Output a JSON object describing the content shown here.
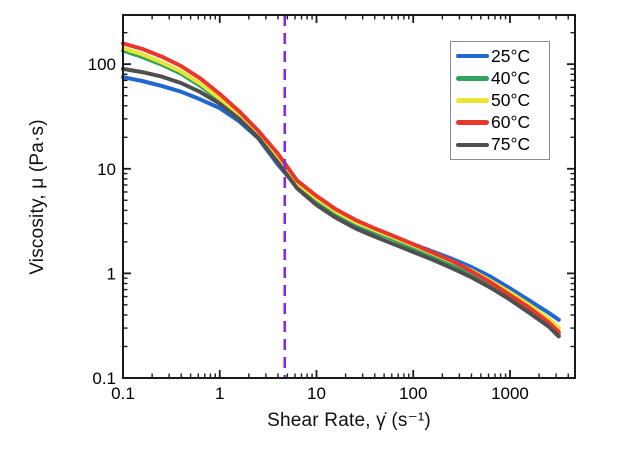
{
  "chart_data": {
    "type": "line",
    "title": "",
    "xlabel": "Shear Rate, γ̇ (s⁻¹)",
    "ylabel": "Viscosity, μ (Pa·s)",
    "x_scale": "log",
    "y_scale": "log",
    "xlim": [
      0.1,
      4700
    ],
    "ylim": [
      0.1,
      295
    ],
    "x_ticks": [
      0.1,
      1,
      10,
      100,
      1000
    ],
    "x_tick_labels": [
      "0.1",
      "1",
      "10",
      "100",
      "1000"
    ],
    "y_ticks": [
      0.1,
      1,
      10,
      100
    ],
    "y_tick_labels": [
      "0.1",
      "1",
      "10",
      "100"
    ],
    "grid": "off",
    "legend_position": "top-right",
    "x": [
      0.1,
      0.158,
      0.251,
      0.398,
      0.631,
      1,
      1.585,
      2.512,
      3.981,
      6.31,
      10,
      15.85,
      25.12,
      39.81,
      63.1,
      100,
      158.5,
      251.2,
      398.1,
      631,
      1000,
      1585,
      2512,
      3200
    ],
    "series": [
      {
        "name": "25°C",
        "color": "#2067d2",
        "values": [
          75,
          69,
          62,
          54.5,
          46,
          38,
          28.5,
          19.5,
          11.0,
          6.7,
          4.7,
          3.5,
          2.85,
          2.45,
          2.15,
          1.9,
          1.62,
          1.38,
          1.15,
          0.93,
          0.72,
          0.55,
          0.42,
          0.36
        ]
      },
      {
        "name": "40°C",
        "color": "#2fa35f",
        "values": [
          135,
          117,
          99,
          81,
          62,
          45,
          31,
          20.5,
          12.6,
          7.0,
          5.0,
          3.75,
          3.0,
          2.5,
          2.1,
          1.75,
          1.45,
          1.2,
          0.98,
          0.78,
          0.6,
          0.46,
          0.315,
          0.26
        ]
      },
      {
        "name": "50°C",
        "color": "#e9e436",
        "values": [
          142,
          124,
          104,
          85,
          65,
          47,
          32.5,
          21.5,
          13.2,
          7.3,
          5.2,
          3.9,
          3.1,
          2.6,
          2.2,
          1.85,
          1.55,
          1.3,
          1.07,
          0.85,
          0.66,
          0.5,
          0.37,
          0.3
        ]
      },
      {
        "name": "60°C",
        "color": "#e9372e",
        "values": [
          158,
          140,
          118,
          96,
          73,
          52,
          35.5,
          23,
          14,
          7.7,
          5.5,
          4.1,
          3.25,
          2.7,
          2.27,
          1.9,
          1.58,
          1.32,
          1.05,
          0.82,
          0.62,
          0.47,
          0.34,
          0.275
        ]
      },
      {
        "name": "75°C",
        "color": "#4f4f4f",
        "values": [
          90,
          84,
          76,
          66,
          54,
          42,
          30,
          19.8,
          11.5,
          6.5,
          4.5,
          3.4,
          2.7,
          2.25,
          1.9,
          1.6,
          1.35,
          1.12,
          0.92,
          0.73,
          0.56,
          0.42,
          0.31,
          0.25
        ]
      }
    ],
    "annotations": {
      "vline": {
        "x": 4.7,
        "orientation": "vertical",
        "style": "dashed",
        "color": "#7e2ee2"
      }
    },
    "line_width": 4,
    "frame_color": "#1a1a1a"
  }
}
